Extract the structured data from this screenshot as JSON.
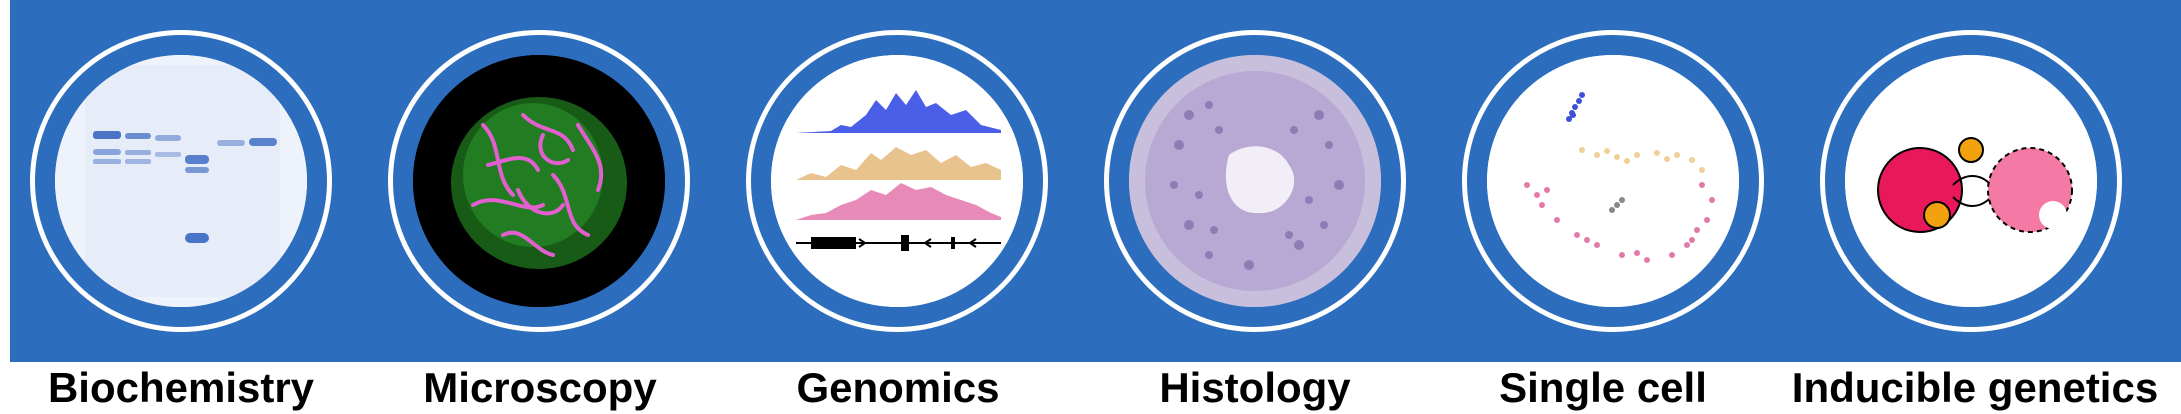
{
  "colors": {
    "banner": "#2c6ebd",
    "ring": "#ffffff",
    "label": "#000000"
  },
  "panels": [
    {
      "label": "Biochemistry",
      "icon": "sds-gel-icon"
    },
    {
      "label": "Microscopy",
      "icon": "chromosome-spread-icon"
    },
    {
      "label": "Genomics",
      "icon": "genome-track-icon"
    },
    {
      "label": "Histology",
      "icon": "tissue-section-icon"
    },
    {
      "label": "Single cell",
      "icon": "umap-plot-icon"
    },
    {
      "label": "Inducible genetics",
      "icon": "inducible-dimer-icon"
    }
  ]
}
